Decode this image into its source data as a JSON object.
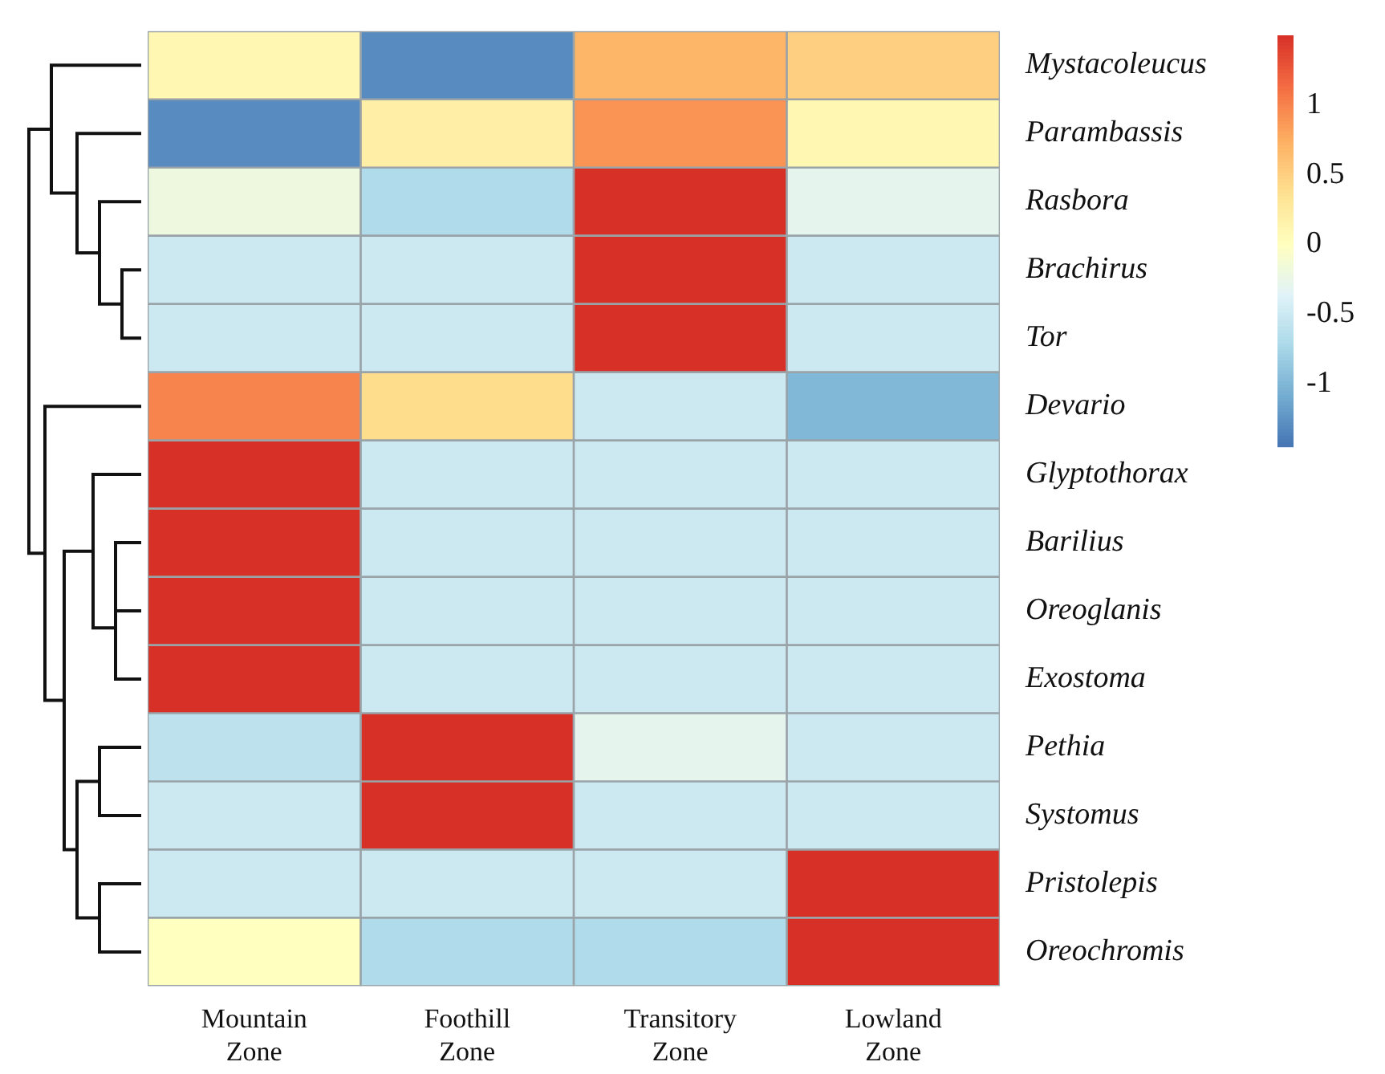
{
  "chart_data": {
    "type": "heatmap",
    "categories": [
      "Mountain Zone",
      "Foothill Zone",
      "Transitory Zone",
      "Lowland Zone"
    ],
    "y_categories": [
      "Mystacoleucus",
      "Parambassis",
      "Rasbora",
      "Brachirus",
      "Tor",
      "Devario",
      "Glyptothorax",
      "Barilius",
      "Oreoglanis",
      "Exostoma",
      "Pethia",
      "Systomus",
      "Pristolepis",
      "Oreochromis"
    ],
    "cells": [
      [
        0.1,
        -1.3,
        0.7,
        0.5
      ],
      [
        -1.3,
        0.2,
        0.9,
        0.1
      ],
      [
        -0.2,
        -0.7,
        1.5,
        -0.3
      ],
      [
        -0.5,
        -0.5,
        1.5,
        -0.5
      ],
      [
        -0.5,
        -0.5,
        1.5,
        -0.5
      ],
      [
        1.0,
        0.4,
        -0.5,
        -1.0
      ],
      [
        1.5,
        -0.5,
        -0.5,
        -0.5
      ],
      [
        1.5,
        -0.5,
        -0.5,
        -0.5
      ],
      [
        1.5,
        -0.5,
        -0.5,
        -0.5
      ],
      [
        1.5,
        -0.5,
        -0.5,
        -0.5
      ],
      [
        -0.6,
        1.5,
        -0.3,
        -0.5
      ],
      [
        -0.5,
        1.5,
        -0.5,
        -0.5
      ],
      [
        -0.5,
        -0.5,
        -0.5,
        1.5
      ],
      [
        0,
        -0.7,
        -0.7,
        1.5
      ]
    ],
    "clim": [
      -1.45,
      1.5
    ],
    "cticks": [
      -1,
      -0.5,
      0,
      0.5,
      1
    ]
  }
}
